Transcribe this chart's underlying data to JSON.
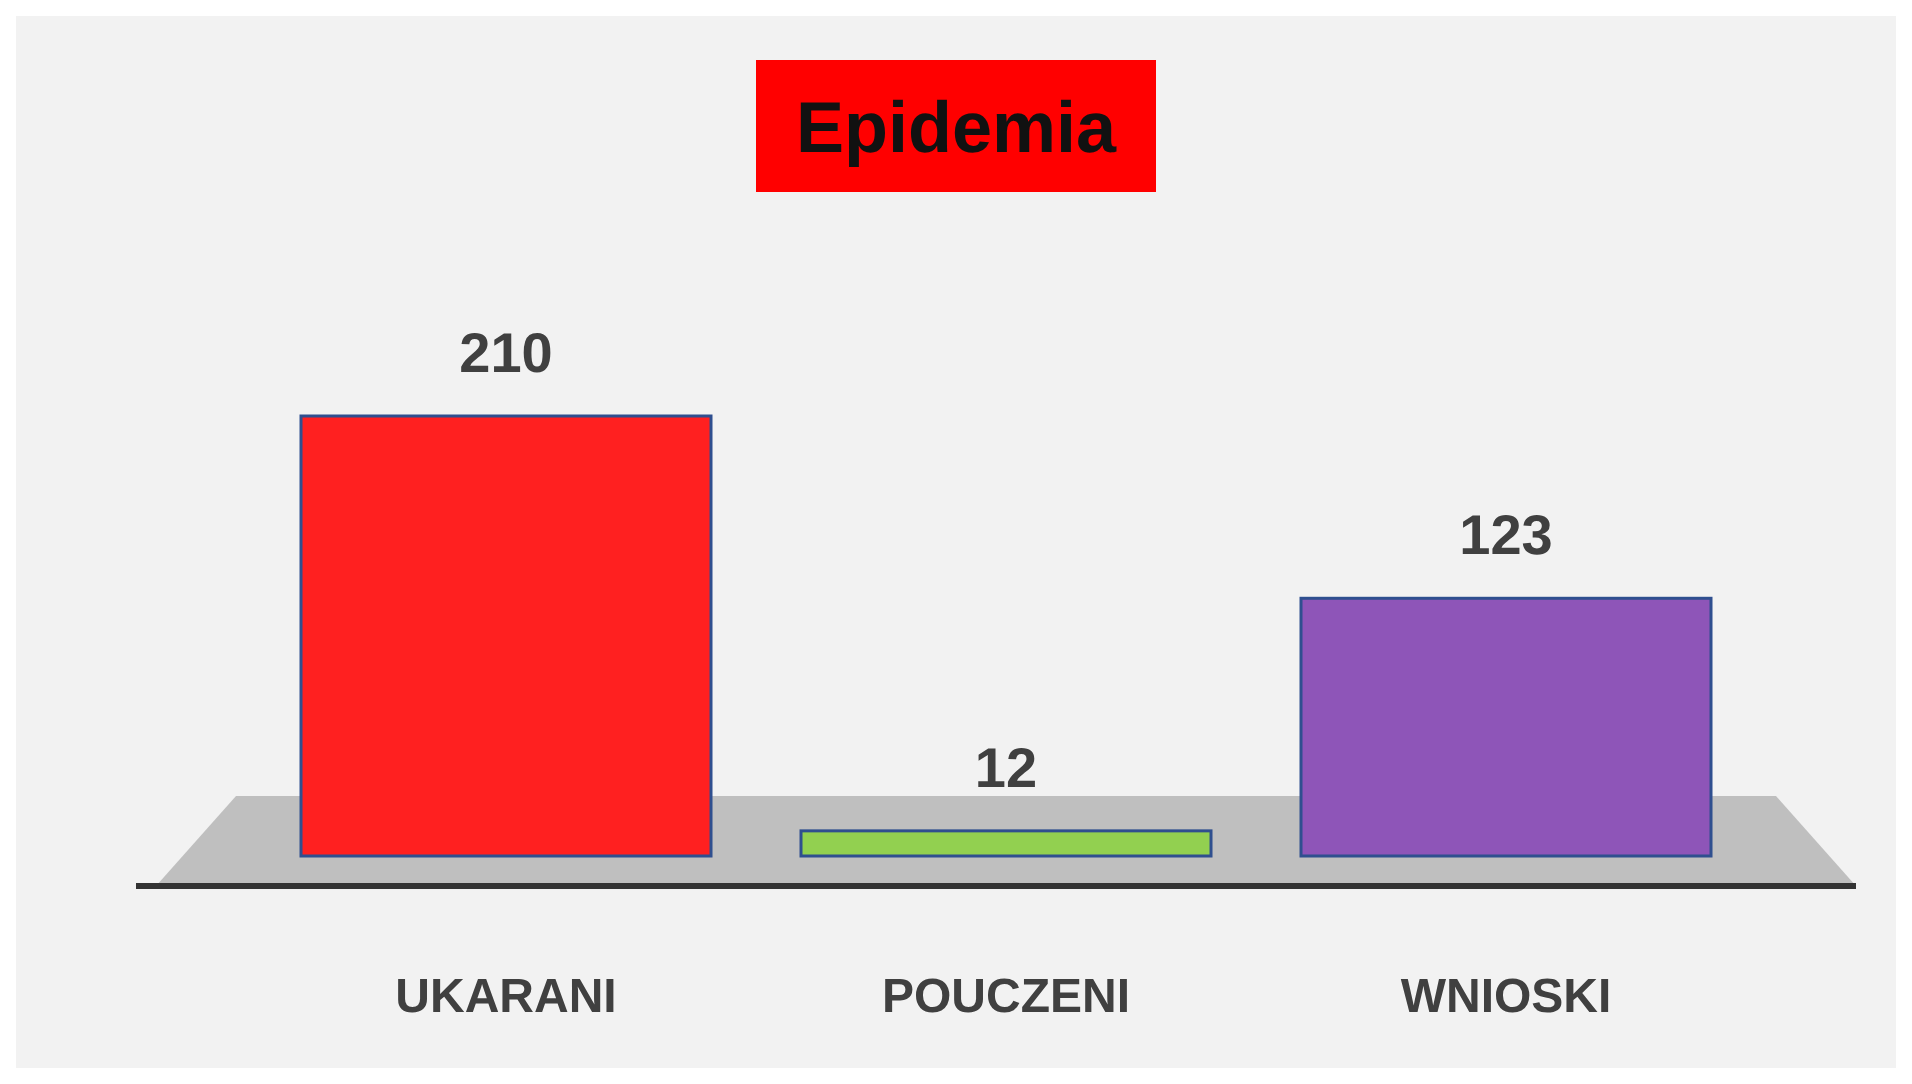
{
  "chart_data": {
    "type": "bar",
    "title": "Epidemia",
    "categories": [
      "UKARANI",
      "POUCZENI",
      "WNIOSKI"
    ],
    "values": [
      210,
      12,
      123
    ],
    "colors": [
      "#ff2020",
      "#92d050",
      "#8e55b8"
    ],
    "data_labels": true
  }
}
